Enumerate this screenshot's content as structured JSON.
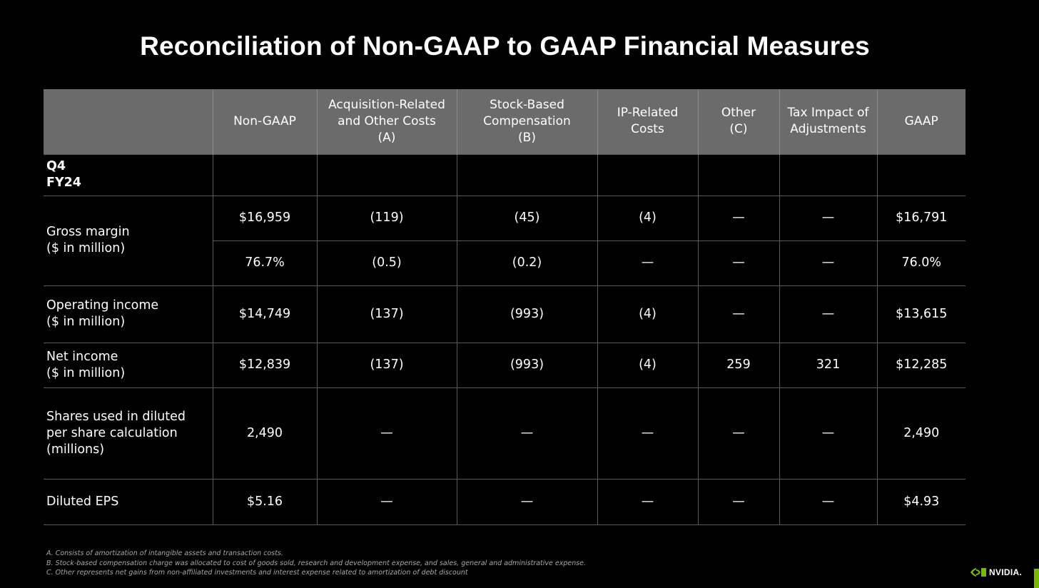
{
  "title": "Reconciliation of Non-GAAP to GAAP Financial Measures",
  "headers": [
    "",
    "Non-GAAP",
    "Acquisition-Related\nand Other Costs\n(A)",
    "Stock-Based\nCompensation\n(B)",
    "IP-Related\nCosts",
    "Other\n(C)",
    "Tax Impact of\nAdjustments",
    "GAAP"
  ],
  "period": "Q4\nFY24",
  "gross_margin": {
    "label": "Gross margin\n($ in million)",
    "row1": [
      "$16,959",
      "(119)",
      "(45)",
      "(4)",
      "—",
      "—",
      "$16,791"
    ],
    "row2": [
      "76.7%",
      "(0.5)",
      "(0.2)",
      "—",
      "—",
      "—",
      "76.0%"
    ]
  },
  "operating_income": {
    "label": "Operating income\n($ in million)",
    "values": [
      "$14,749",
      "(137)",
      "(993)",
      "(4)",
      "—",
      "—",
      "$13,615"
    ]
  },
  "net_income": {
    "label": "Net income\n($ in million)",
    "values": [
      "$12,839",
      "(137)",
      "(993)",
      "(4)",
      "259",
      "321",
      "$12,285"
    ]
  },
  "shares": {
    "label": "Shares used in diluted\nper share calculation\n(millions)",
    "values": [
      "2,490",
      "—",
      "—",
      "—",
      "—",
      "—",
      "2,490"
    ]
  },
  "eps": {
    "label": "Diluted EPS",
    "values": [
      "$5.16",
      "—",
      "—",
      "—",
      "—",
      "—",
      "$4.93"
    ]
  },
  "footnotes": [
    "A.  Consists of amortization of intangible assets and transaction costs.",
    "B.  Stock-based compensation charge was allocated to cost of goods sold, research and development expense, and sales, general and administrative expense.",
    "C.  Other represents net gains from non-affiliated investments and interest expense related to amortization of debt discount"
  ],
  "brand": {
    "logo_text": "NVIDIA.",
    "icon": "nvidia-eye-icon",
    "accent": "#76b900"
  }
}
